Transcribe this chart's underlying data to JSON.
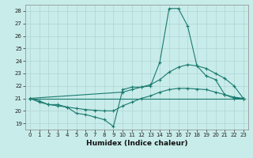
{
  "xlabel": "Humidex (Indice chaleur)",
  "bg_color": "#c8ecea",
  "grid_color": "#b0d4d4",
  "line_color": "#1a7a6e",
  "xlim": [
    -0.5,
    23.5
  ],
  "ylim": [
    18.5,
    28.5
  ],
  "xticks": [
    0,
    1,
    2,
    3,
    4,
    5,
    6,
    7,
    8,
    9,
    10,
    11,
    12,
    13,
    14,
    15,
    16,
    17,
    18,
    19,
    20,
    21,
    22,
    23
  ],
  "yticks": [
    19,
    20,
    21,
    22,
    23,
    24,
    25,
    26,
    27,
    28
  ],
  "line1_x": [
    0,
    1,
    2,
    3,
    4,
    5,
    6,
    7,
    8,
    9,
    10,
    11,
    12,
    13,
    14,
    15,
    16,
    17,
    18,
    19,
    20,
    21,
    22,
    23
  ],
  "line1_y": [
    21.0,
    20.8,
    20.5,
    20.5,
    20.3,
    19.8,
    19.7,
    19.5,
    19.3,
    18.75,
    21.7,
    21.9,
    21.9,
    22.0,
    23.9,
    28.2,
    28.2,
    26.8,
    23.6,
    22.8,
    22.5,
    21.3,
    21.0,
    21.0
  ],
  "line2_x": [
    0,
    1,
    2,
    3,
    4,
    5,
    6,
    7,
    8,
    9,
    10,
    11,
    12,
    13,
    14,
    15,
    16,
    17,
    18,
    19,
    20,
    21,
    22,
    23
  ],
  "line2_y": [
    21.0,
    20.7,
    20.5,
    20.4,
    20.3,
    20.2,
    20.1,
    20.05,
    20.0,
    20.0,
    20.4,
    20.7,
    21.0,
    21.2,
    21.5,
    21.7,
    21.8,
    21.8,
    21.75,
    21.7,
    21.5,
    21.3,
    21.1,
    21.0
  ],
  "line3_x": [
    0,
    10,
    11,
    12,
    13,
    14,
    15,
    16,
    17,
    18,
    19,
    20,
    21,
    22,
    23
  ],
  "line3_y": [
    21.0,
    21.5,
    21.7,
    21.9,
    22.1,
    22.5,
    23.1,
    23.5,
    23.7,
    23.6,
    23.4,
    23.0,
    22.6,
    22.0,
    21.0
  ],
  "line4_x": [
    0,
    23
  ],
  "line4_y": [
    21.0,
    21.0
  ]
}
